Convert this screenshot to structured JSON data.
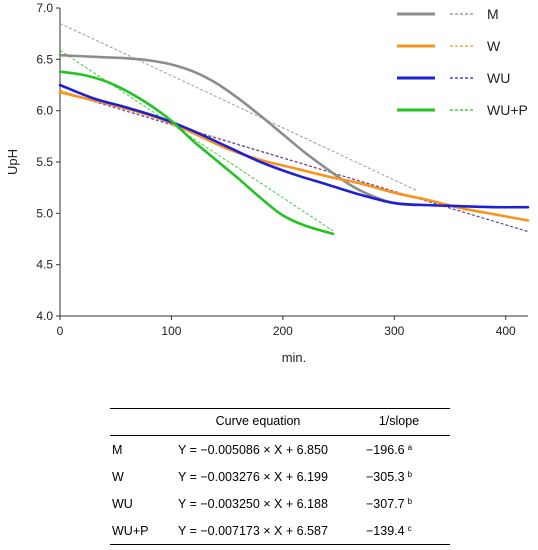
{
  "chart_data": {
    "type": "line",
    "xlabel": "min.",
    "ylabel": "UpH",
    "xlim": [
      0,
      420
    ],
    "ylim": [
      4.0,
      7.0
    ],
    "x_ticks": [
      0,
      100,
      200,
      300,
      400
    ],
    "y_ticks": [
      "4.0",
      "4.5",
      "5.0",
      "5.5",
      "6.0",
      "6.5",
      "7.0"
    ],
    "grid": false,
    "legend_position": "top-right",
    "series": [
      {
        "name": "M",
        "color": "#8c8c8c",
        "x": [
          0,
          20,
          40,
          60,
          80,
          100,
          120,
          140,
          160,
          180,
          200,
          220,
          240,
          260,
          280,
          300,
          320
        ],
        "values": [
          6.54,
          6.53,
          6.52,
          6.51,
          6.49,
          6.45,
          6.38,
          6.27,
          6.12,
          5.95,
          5.77,
          5.59,
          5.43,
          5.28,
          5.17,
          5.1,
          5.08
        ],
        "fit": {
          "slope": -0.005086,
          "intercept": 6.85,
          "x_range": [
            0,
            320
          ]
        }
      },
      {
        "name": "W",
        "color": "#f7941d",
        "x": [
          0,
          30,
          60,
          90,
          120,
          150,
          180,
          210,
          240,
          270,
          300,
          330,
          360,
          390,
          420
        ],
        "values": [
          6.18,
          6.1,
          6.02,
          5.92,
          5.78,
          5.63,
          5.52,
          5.44,
          5.36,
          5.29,
          5.2,
          5.13,
          5.05,
          4.99,
          4.93
        ],
        "fit": {
          "slope": -0.003276,
          "intercept": 6.199,
          "x_range": [
            0,
            420
          ]
        }
      },
      {
        "name": "WU",
        "color": "#1f1fd6",
        "x": [
          0,
          30,
          60,
          90,
          120,
          150,
          180,
          210,
          240,
          270,
          300,
          330,
          360,
          390,
          420
        ],
        "values": [
          6.25,
          6.12,
          6.03,
          5.93,
          5.8,
          5.65,
          5.5,
          5.38,
          5.28,
          5.18,
          5.1,
          5.08,
          5.07,
          5.06,
          5.06
        ],
        "fit": {
          "slope": -0.00325,
          "intercept": 6.188,
          "x_range": [
            0,
            420
          ]
        }
      },
      {
        "name": "WU+P",
        "color": "#22c322",
        "x": [
          0,
          20,
          40,
          60,
          80,
          100,
          120,
          140,
          160,
          180,
          200,
          220,
          245
        ],
        "values": [
          6.38,
          6.35,
          6.29,
          6.19,
          6.06,
          5.9,
          5.7,
          5.52,
          5.34,
          5.15,
          4.98,
          4.88,
          4.8
        ],
        "fit": {
          "slope": -0.007173,
          "intercept": 6.587,
          "x_range": [
            0,
            245
          ]
        }
      }
    ]
  },
  "table": {
    "headers": [
      "",
      "Curve equation",
      "1/slope"
    ],
    "rows": [
      {
        "name": "M",
        "equation": "Y = −0.005086 × X + 6.850",
        "value": "−196.6",
        "sup": "a"
      },
      {
        "name": "W",
        "equation": "Y = −0.003276 × X + 6.199",
        "value": "−305.3",
        "sup": "b"
      },
      {
        "name": "WU",
        "equation": "Y = −0.003250 × X + 6.188",
        "value": "−307.7",
        "sup": "b"
      },
      {
        "name": "WU+P",
        "equation": "Y = −0.007173 × X + 6.587",
        "value": "−139.4",
        "sup": "c"
      }
    ]
  }
}
